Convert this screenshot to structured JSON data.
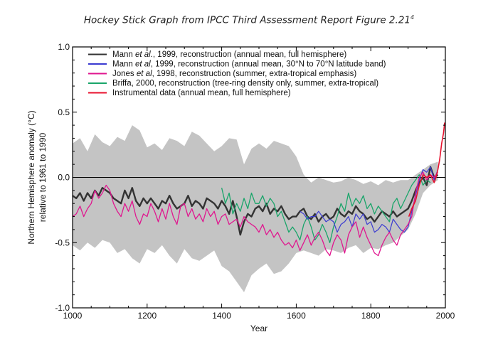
{
  "caption": {
    "text": "Hockey Stick Graph from IPCC Third Assessment Report Figure 2.21",
    "superscript": "4"
  },
  "chart_data": {
    "type": "line",
    "title": "",
    "xlabel": "Year",
    "ylabel": "Northern Hemisphere anomaly (°C)",
    "ylabel2": "relative to 1961 to 1990",
    "xlim": [
      1000,
      2000
    ],
    "ylim": [
      -1.0,
      1.0
    ],
    "xticks": [
      1000,
      1200,
      1400,
      1600,
      1800,
      2000
    ],
    "yticks": [
      1.0,
      0.5,
      0.0,
      -0.5,
      -1.0
    ],
    "ytick_labels": [
      "1.0",
      "0.5",
      "0.0",
      "-0.5",
      "-1.0"
    ],
    "grid": false,
    "zero_line": true,
    "legend_position": "top-left",
    "legend": [
      {
        "label_parts": [
          [
            "Mann ",
            false
          ],
          [
            "et al.",
            true
          ],
          [
            ", 1999, reconstruction (annual mean, full hemisphere)",
            false
          ]
        ],
        "color": "#333333"
      },
      {
        "label_parts": [
          [
            "Mann ",
            false
          ],
          [
            "et al",
            true
          ],
          [
            ", 1999, reconstruction (annual mean, 30°N to 70°N latitude band)",
            false
          ]
        ],
        "color": "#3b3bd1"
      },
      {
        "label_parts": [
          [
            "Jones ",
            false
          ],
          [
            "et al",
            true
          ],
          [
            ", 1998, reconstruction (summer, extra-tropical emphasis)",
            false
          ]
        ],
        "color": "#e0178f"
      },
      {
        "label_parts": [
          [
            "Briffa, 2000, reconstruction (tree-ring density only, summer, extra-tropical)",
            false
          ]
        ],
        "color": "#1aa56a"
      },
      {
        "label_parts": [
          [
            "Instrumental data (annual mean, full hemisphere)",
            false
          ]
        ],
        "color": "#e8112d"
      }
    ],
    "uncertainty_band": {
      "color": "#c4c4c4",
      "x": [
        1000,
        1020,
        1040,
        1060,
        1080,
        1100,
        1120,
        1140,
        1160,
        1180,
        1200,
        1220,
        1240,
        1260,
        1280,
        1300,
        1320,
        1340,
        1360,
        1380,
        1400,
        1420,
        1440,
        1460,
        1480,
        1500,
        1520,
        1540,
        1560,
        1580,
        1600,
        1620,
        1640,
        1660,
        1680,
        1700,
        1720,
        1740,
        1760,
        1780,
        1800,
        1820,
        1840,
        1860,
        1880,
        1900,
        1920,
        1940,
        1960,
        1980
      ],
      "upper": [
        0.26,
        0.3,
        0.2,
        0.33,
        0.27,
        0.24,
        0.31,
        0.28,
        0.4,
        0.36,
        0.23,
        0.26,
        0.21,
        0.3,
        0.28,
        0.24,
        0.35,
        0.32,
        0.26,
        0.2,
        0.24,
        0.3,
        0.29,
        0.1,
        0.22,
        0.26,
        0.22,
        0.28,
        0.26,
        0.24,
        0.16,
        0.02,
        -0.04,
        0.0,
        -0.02,
        -0.04,
        -0.03,
        0.0,
        -0.02,
        -0.05,
        -0.03,
        -0.06,
        -0.02,
        -0.04,
        -0.02,
        -0.02,
        0.02,
        0.06,
        0.1,
        0.12
      ],
      "lower": [
        -0.52,
        -0.56,
        -0.5,
        -0.54,
        -0.48,
        -0.5,
        -0.58,
        -0.55,
        -0.62,
        -0.66,
        -0.55,
        -0.58,
        -0.52,
        -0.6,
        -0.66,
        -0.55,
        -0.62,
        -0.64,
        -0.6,
        -0.56,
        -0.68,
        -0.72,
        -0.8,
        -0.88,
        -0.75,
        -0.7,
        -0.66,
        -0.74,
        -0.72,
        -0.66,
        -0.58,
        -0.56,
        -0.58,
        -0.6,
        -0.55,
        -0.56,
        -0.58,
        -0.54,
        -0.52,
        -0.58,
        -0.54,
        -0.55,
        -0.52,
        -0.5,
        -0.45,
        -0.4,
        -0.28,
        -0.12,
        -0.06,
        -0.02
      ]
    },
    "series": [
      {
        "name": "Mann et al., 1999, reconstruction (annual mean, full hemisphere)",
        "color": "#333333",
        "width": 2.4,
        "x": [
          1000,
          1010,
          1020,
          1030,
          1040,
          1050,
          1060,
          1070,
          1080,
          1090,
          1100,
          1110,
          1120,
          1130,
          1140,
          1150,
          1160,
          1170,
          1180,
          1190,
          1200,
          1210,
          1220,
          1230,
          1240,
          1250,
          1260,
          1270,
          1280,
          1290,
          1300,
          1310,
          1320,
          1330,
          1340,
          1350,
          1360,
          1370,
          1380,
          1390,
          1400,
          1410,
          1420,
          1430,
          1440,
          1450,
          1460,
          1470,
          1480,
          1490,
          1500,
          1510,
          1520,
          1530,
          1540,
          1550,
          1560,
          1570,
          1580,
          1590,
          1600,
          1610,
          1620,
          1630,
          1640,
          1650,
          1660,
          1670,
          1680,
          1690,
          1700,
          1710,
          1720,
          1730,
          1740,
          1750,
          1760,
          1770,
          1780,
          1790,
          1800,
          1810,
          1820,
          1830,
          1840,
          1850,
          1860,
          1870,
          1880,
          1890,
          1900,
          1910,
          1920,
          1930,
          1940,
          1950,
          1960,
          1970,
          1980
        ],
        "y": [
          -0.14,
          -0.16,
          -0.12,
          -0.18,
          -0.12,
          -0.16,
          -0.1,
          -0.14,
          -0.08,
          -0.1,
          -0.12,
          -0.16,
          -0.18,
          -0.2,
          -0.1,
          -0.16,
          -0.08,
          -0.18,
          -0.22,
          -0.16,
          -0.2,
          -0.16,
          -0.2,
          -0.24,
          -0.18,
          -0.2,
          -0.14,
          -0.2,
          -0.24,
          -0.22,
          -0.2,
          -0.14,
          -0.22,
          -0.18,
          -0.2,
          -0.24,
          -0.16,
          -0.18,
          -0.2,
          -0.24,
          -0.18,
          -0.22,
          -0.28,
          -0.18,
          -0.3,
          -0.44,
          -0.34,
          -0.28,
          -0.3,
          -0.24,
          -0.22,
          -0.26,
          -0.2,
          -0.28,
          -0.24,
          -0.26,
          -0.22,
          -0.28,
          -0.32,
          -0.3,
          -0.3,
          -0.26,
          -0.24,
          -0.3,
          -0.32,
          -0.28,
          -0.34,
          -0.3,
          -0.28,
          -0.32,
          -0.3,
          -0.24,
          -0.28,
          -0.3,
          -0.26,
          -0.28,
          -0.22,
          -0.26,
          -0.28,
          -0.32,
          -0.3,
          -0.34,
          -0.3,
          -0.26,
          -0.28,
          -0.3,
          -0.26,
          -0.3,
          -0.28,
          -0.26,
          -0.24,
          -0.18,
          -0.1,
          -0.04,
          0.0,
          -0.06,
          0.08,
          0.0,
          0.02
        ]
      },
      {
        "name": "Mann et al, 1999, reconstruction (annual mean, 30°N to 70°N latitude band)",
        "color": "#3b3bd1",
        "width": 1.2,
        "x": [
          1610,
          1620,
          1630,
          1640,
          1650,
          1660,
          1670,
          1680,
          1690,
          1700,
          1710,
          1720,
          1730,
          1740,
          1750,
          1760,
          1770,
          1780,
          1790,
          1800,
          1810,
          1820,
          1830,
          1840,
          1850,
          1860,
          1870,
          1880,
          1890,
          1900,
          1910,
          1920,
          1930,
          1940,
          1950,
          1960,
          1970,
          1980
        ],
        "y": [
          -0.26,
          -0.28,
          -0.32,
          -0.3,
          -0.3,
          -0.26,
          -0.3,
          -0.34,
          -0.32,
          -0.34,
          -0.42,
          -0.36,
          -0.34,
          -0.3,
          -0.38,
          -0.28,
          -0.32,
          -0.28,
          -0.36,
          -0.34,
          -0.42,
          -0.4,
          -0.36,
          -0.38,
          -0.42,
          -0.32,
          -0.36,
          -0.4,
          -0.42,
          -0.38,
          -0.26,
          -0.14,
          -0.02,
          0.06,
          0.04,
          0.08,
          -0.02,
          0.06
        ]
      },
      {
        "name": "Jones et al, 1998, reconstruction (summer, extra-tropical emphasis)",
        "color": "#e0178f",
        "width": 1.3,
        "x": [
          1000,
          1010,
          1020,
          1030,
          1040,
          1050,
          1060,
          1070,
          1080,
          1090,
          1100,
          1110,
          1120,
          1130,
          1140,
          1150,
          1160,
          1170,
          1180,
          1190,
          1200,
          1210,
          1220,
          1230,
          1240,
          1250,
          1260,
          1270,
          1280,
          1290,
          1300,
          1310,
          1320,
          1330,
          1340,
          1350,
          1360,
          1370,
          1380,
          1390,
          1400,
          1410,
          1420,
          1430,
          1440,
          1450,
          1460,
          1470,
          1480,
          1490,
          1500,
          1510,
          1520,
          1530,
          1540,
          1550,
          1560,
          1570,
          1580,
          1590,
          1600,
          1610,
          1620,
          1630,
          1640,
          1650,
          1660,
          1670,
          1680,
          1690,
          1700,
          1710,
          1720,
          1730,
          1740,
          1750,
          1760,
          1770,
          1780,
          1790,
          1800,
          1810,
          1820,
          1830,
          1840,
          1850,
          1860,
          1870,
          1880,
          1890,
          1900,
          1910,
          1920,
          1930,
          1940,
          1950,
          1960,
          1970,
          1980
        ],
        "y": [
          -0.3,
          -0.28,
          -0.22,
          -0.3,
          -0.24,
          -0.2,
          -0.1,
          -0.16,
          -0.12,
          -0.06,
          -0.1,
          -0.2,
          -0.26,
          -0.3,
          -0.2,
          -0.26,
          -0.18,
          -0.3,
          -0.36,
          -0.28,
          -0.3,
          -0.2,
          -0.26,
          -0.34,
          -0.24,
          -0.32,
          -0.2,
          -0.3,
          -0.36,
          -0.22,
          -0.2,
          -0.3,
          -0.24,
          -0.32,
          -0.28,
          -0.34,
          -0.24,
          -0.3,
          -0.26,
          -0.36,
          -0.3,
          -0.28,
          -0.36,
          -0.34,
          -0.32,
          -0.38,
          -0.3,
          -0.34,
          -0.36,
          -0.38,
          -0.42,
          -0.36,
          -0.44,
          -0.4,
          -0.46,
          -0.42,
          -0.48,
          -0.52,
          -0.5,
          -0.54,
          -0.48,
          -0.56,
          -0.5,
          -0.44,
          -0.52,
          -0.46,
          -0.42,
          -0.48,
          -0.56,
          -0.6,
          -0.5,
          -0.44,
          -0.48,
          -0.58,
          -0.44,
          -0.38,
          -0.34,
          -0.46,
          -0.38,
          -0.46,
          -0.52,
          -0.58,
          -0.6,
          -0.52,
          -0.46,
          -0.42,
          -0.48,
          -0.52,
          -0.44,
          -0.4,
          -0.36,
          -0.3,
          -0.12,
          0.0,
          0.04,
          -0.02,
          0.02,
          0.0,
          0.04
        ]
      },
      {
        "name": "Briffa, 2000, reconstruction (tree-ring density only, summer, extra-tropical)",
        "color": "#1aa56a",
        "width": 1.3,
        "x": [
          1400,
          1410,
          1420,
          1430,
          1440,
          1450,
          1460,
          1470,
          1480,
          1490,
          1500,
          1510,
          1520,
          1530,
          1540,
          1550,
          1560,
          1570,
          1580,
          1590,
          1600,
          1610,
          1620,
          1630,
          1640,
          1650,
          1660,
          1670,
          1680,
          1690,
          1700,
          1710,
          1720,
          1730,
          1740,
          1750,
          1760,
          1770,
          1780,
          1790,
          1800,
          1810,
          1820,
          1830,
          1840,
          1850,
          1860,
          1870,
          1880,
          1890,
          1900,
          1910,
          1920,
          1930,
          1940,
          1950,
          1960
        ],
        "y": [
          -0.08,
          -0.2,
          -0.12,
          -0.28,
          -0.2,
          -0.26,
          -0.16,
          -0.24,
          -0.12,
          -0.2,
          -0.2,
          -0.14,
          -0.22,
          -0.16,
          -0.2,
          -0.3,
          -0.26,
          -0.34,
          -0.42,
          -0.38,
          -0.42,
          -0.48,
          -0.36,
          -0.3,
          -0.38,
          -0.48,
          -0.44,
          -0.36,
          -0.42,
          -0.5,
          -0.38,
          -0.3,
          -0.2,
          -0.26,
          -0.12,
          -0.22,
          -0.16,
          -0.2,
          -0.14,
          -0.24,
          -0.2,
          -0.28,
          -0.22,
          -0.26,
          -0.3,
          -0.34,
          -0.2,
          -0.16,
          -0.24,
          -0.18,
          -0.12,
          -0.06,
          -0.02,
          0.02,
          -0.06,
          -0.02,
          -0.04
        ]
      },
      {
        "name": "Instrumental data (annual mean, full hemisphere)",
        "color": "#e8112d",
        "width": 1.6,
        "x": [
          1902,
          1910,
          1920,
          1930,
          1940,
          1950,
          1960,
          1970,
          1975,
          1980,
          1985,
          1990,
          1995,
          1998
        ],
        "y": [
          -0.3,
          -0.24,
          -0.18,
          -0.06,
          0.02,
          0.0,
          0.02,
          -0.04,
          0.0,
          0.06,
          0.14,
          0.26,
          0.34,
          0.42
        ]
      }
    ]
  }
}
